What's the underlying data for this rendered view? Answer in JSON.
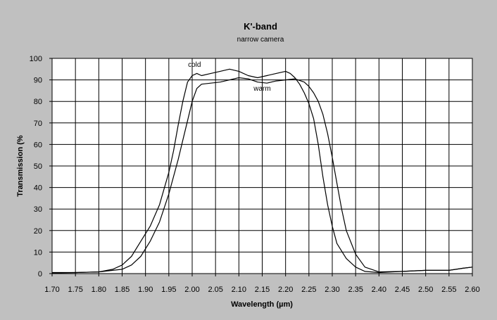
{
  "chart_data": {
    "type": "line",
    "title": "K'-band",
    "subtitle": "narrow camera",
    "xlabel": "Wavelength (µm)",
    "ylabel": "Transmission (%",
    "xlim": [
      1.7,
      2.6
    ],
    "ylim": [
      0,
      100
    ],
    "x_ticks": [
      "1.70",
      "1.75",
      "1.80",
      "1.85",
      "1.90",
      "1.95",
      "2.00",
      "2.05",
      "2.10",
      "2.15",
      "2.20",
      "2.25",
      "2.30",
      "2.35",
      "2.40",
      "2.45",
      "2.50",
      "2.55",
      "2.60"
    ],
    "y_ticks": [
      "0",
      "10",
      "20",
      "30",
      "40",
      "50",
      "60",
      "70",
      "80",
      "90",
      "100"
    ],
    "grid": true,
    "background_color": "#c0c0c0",
    "plot_color": "#ffffff",
    "line_color": "#000000",
    "annotations": [
      {
        "text": "cold",
        "x": 2.005,
        "y": 96
      },
      {
        "text": "warm",
        "x": 2.15,
        "y": 85
      }
    ],
    "series": [
      {
        "name": "cold",
        "x": [
          1.7,
          1.75,
          1.8,
          1.83,
          1.85,
          1.87,
          1.89,
          1.91,
          1.93,
          1.95,
          1.96,
          1.97,
          1.98,
          1.99,
          2.0,
          2.01,
          2.02,
          2.04,
          2.06,
          2.08,
          2.1,
          2.12,
          2.14,
          2.16,
          2.18,
          2.2,
          2.21,
          2.22,
          2.23,
          2.24,
          2.25,
          2.26,
          2.27,
          2.28,
          2.29,
          2.3,
          2.31,
          2.33,
          2.35,
          2.37,
          2.4,
          2.45,
          2.5,
          2.55,
          2.58,
          2.6
        ],
        "y": [
          0.5,
          0.5,
          0.8,
          2,
          4,
          8,
          15,
          22,
          32,
          47,
          57,
          69,
          80,
          89,
          92,
          93,
          92,
          93,
          94,
          95,
          94,
          92,
          91,
          92,
          93,
          94,
          93,
          91,
          88,
          84,
          79,
          72,
          60,
          45,
          32,
          22,
          14,
          7,
          3,
          1,
          0.5,
          1,
          1.5,
          1.5,
          2.5,
          3
        ]
      },
      {
        "name": "warm",
        "x": [
          1.7,
          1.75,
          1.8,
          1.85,
          1.87,
          1.89,
          1.91,
          1.93,
          1.95,
          1.97,
          1.98,
          1.99,
          2.0,
          2.01,
          2.02,
          2.04,
          2.06,
          2.08,
          2.1,
          2.12,
          2.14,
          2.16,
          2.18,
          2.2,
          2.22,
          2.24,
          2.25,
          2.26,
          2.27,
          2.28,
          2.29,
          2.3,
          2.31,
          2.32,
          2.33,
          2.35,
          2.37,
          2.4,
          2.45,
          2.5,
          2.55,
          2.58,
          2.6
        ],
        "y": [
          0.3,
          0.5,
          0.8,
          2,
          4,
          8,
          15,
          24,
          37,
          53,
          62,
          71,
          80,
          86,
          88,
          88.5,
          89,
          90,
          91,
          90.5,
          89,
          88.5,
          89.5,
          90,
          90.5,
          89,
          87,
          84,
          80,
          74,
          65,
          54,
          42,
          30,
          20,
          9,
          3,
          0.8,
          1,
          1.5,
          1.5,
          2.5,
          3
        ]
      }
    ]
  }
}
